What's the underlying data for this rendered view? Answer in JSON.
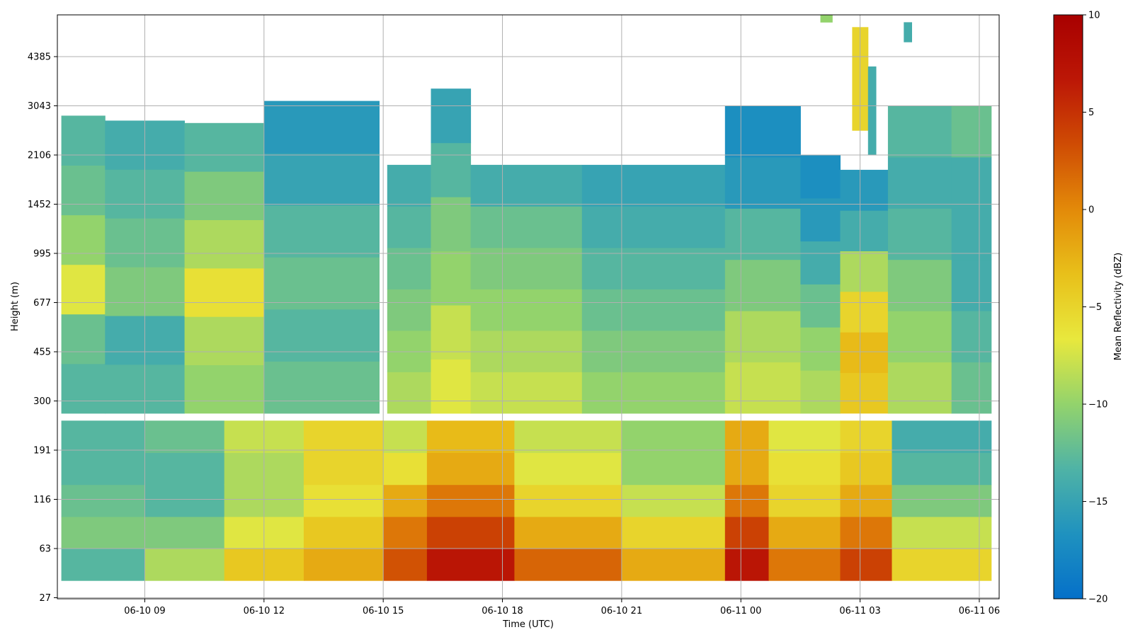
{
  "chart_data": {
    "type": "heatmap",
    "xlabel": "Time (UTC)",
    "ylabel": "Height (m)",
    "colorbar_label": "Mean Reflectivity (dBZ)",
    "colormap": [
      "#0570c9",
      "#1f92bf",
      "#4fb3a6",
      "#93d36c",
      "#e8e83d",
      "#e8c01a",
      "#e38a09",
      "#cf4c04",
      "#bc1706",
      "#a80000"
    ],
    "clim": [
      -20,
      10
    ],
    "colorbar_ticks": [
      {
        "value": 10,
        "label": "10"
      },
      {
        "value": 5,
        "label": "5"
      },
      {
        "value": 0,
        "label": "0"
      },
      {
        "value": -5,
        "label": "−5"
      },
      {
        "value": -10,
        "label": "−10"
      },
      {
        "value": -15,
        "label": "−15"
      },
      {
        "value": -20,
        "label": "−20"
      }
    ],
    "x_range_hours": [
      6.8,
      30.5
    ],
    "x_ticks": [
      {
        "hour": 9,
        "label": "06-10 09"
      },
      {
        "hour": 12,
        "label": "06-10 12"
      },
      {
        "hour": 15,
        "label": "06-10 15"
      },
      {
        "hour": 18,
        "label": "06-10 18"
      },
      {
        "hour": 21,
        "label": "06-10 21"
      },
      {
        "hour": 24,
        "label": "06-11 00"
      },
      {
        "hour": 27,
        "label": "06-11 03"
      },
      {
        "hour": 30,
        "label": "06-11 06"
      }
    ],
    "y_ticks": [
      "27",
      "63",
      "116",
      "191",
      "300",
      "455",
      "677",
      "995",
      "1452",
      "2106",
      "3043",
      "4385"
    ],
    "grid": true,
    "lower_gate": {
      "height_range_ticks": [
        0.35,
        3.6
      ],
      "columns": [
        {
          "start_hour": 6.9,
          "end_hour": 9.0,
          "profile": [
            -13,
            -11,
            -12,
            -13,
            -13
          ]
        },
        {
          "start_hour": 9.0,
          "end_hour": 11.0,
          "profile": [
            -9,
            -11,
            -13,
            -13,
            -12
          ]
        },
        {
          "start_hour": 11.0,
          "end_hour": 13.0,
          "profile": [
            -4,
            -7,
            -9,
            -9,
            -8
          ]
        },
        {
          "start_hour": 13.0,
          "end_hour": 15.0,
          "profile": [
            -2,
            -4,
            -6,
            -5,
            -5
          ]
        },
        {
          "start_hour": 15.0,
          "end_hour": 16.1,
          "profile": [
            3,
            1,
            -2,
            -6,
            -8
          ]
        },
        {
          "start_hour": 16.1,
          "end_hour": 18.3,
          "profile": [
            7,
            4,
            1,
            -2,
            -3
          ]
        },
        {
          "start_hour": 18.3,
          "end_hour": 21.0,
          "profile": [
            2,
            -2,
            -5,
            -7,
            -8
          ]
        },
        {
          "start_hour": 21.0,
          "end_hour": 23.6,
          "profile": [
            -2,
            -5,
            -8,
            -10,
            -10
          ]
        },
        {
          "start_hour": 23.6,
          "end_hour": 24.7,
          "profile": [
            7,
            4,
            1,
            -2,
            -2
          ]
        },
        {
          "start_hour": 24.7,
          "end_hour": 26.5,
          "profile": [
            1,
            -2,
            -5,
            -6,
            -7
          ]
        },
        {
          "start_hour": 26.5,
          "end_hour": 27.8,
          "profile": [
            4,
            1,
            -2,
            -4,
            -5
          ]
        },
        {
          "start_hour": 27.8,
          "end_hour": 30.3,
          "profile": [
            -5,
            -8,
            -11,
            -13,
            -14
          ]
        }
      ]
    },
    "upper_gate": {
      "height_range_ticks": [
        3.75,
        11.0
      ],
      "columns": [
        {
          "start_hour": 6.9,
          "end_hour": 8.0,
          "top_tick": 9.8,
          "profile": [
            -13,
            -12,
            -7,
            -10,
            -12,
            -13
          ]
        },
        {
          "start_hour": 8.0,
          "end_hour": 10.0,
          "top_tick": 9.7,
          "profile": [
            -13,
            -14,
            -11,
            -12,
            -13,
            -14
          ]
        },
        {
          "start_hour": 10.0,
          "end_hour": 12.0,
          "top_tick": 9.65,
          "profile": [
            -10,
            -9,
            -6,
            -9,
            -11,
            -13
          ]
        },
        {
          "start_hour": 12.0,
          "end_hour": 14.9,
          "top_tick": 10.1,
          "profile": [
            -12,
            -13,
            -12,
            -13,
            -15,
            -16
          ]
        },
        {
          "start_hour": 15.1,
          "end_hour": 16.2,
          "top_tick": 8.8,
          "profile": [
            -9,
            -10,
            -11,
            -12,
            -13,
            -14
          ]
        },
        {
          "start_hour": 16.2,
          "end_hour": 17.2,
          "top_tick": 10.35,
          "profile": [
            -7,
            -8,
            -10,
            -11,
            -13,
            -15
          ]
        },
        {
          "start_hour": 17.2,
          "end_hour": 20.0,
          "top_tick": 8.8,
          "profile": [
            -8,
            -9,
            -10,
            -11,
            -12,
            -14
          ]
        },
        {
          "start_hour": 20.0,
          "end_hour": 23.6,
          "top_tick": 8.8,
          "profile": [
            -10,
            -11,
            -12,
            -13,
            -14,
            -15
          ]
        },
        {
          "start_hour": 23.6,
          "end_hour": 25.5,
          "top_tick": 10.0,
          "profile": [
            -8,
            -9,
            -11,
            -13,
            -16,
            -17
          ]
        },
        {
          "start_hour": 25.5,
          "end_hour": 26.5,
          "top_tick": 9.0,
          "profile": [
            -9,
            -10,
            -12,
            -14,
            -16,
            -17
          ]
        },
        {
          "start_hour": 26.5,
          "end_hour": 27.7,
          "top_tick": 8.7,
          "profile": [
            -4,
            -3,
            -5,
            -9,
            -14,
            -16
          ]
        },
        {
          "start_hour": 27.7,
          "end_hour": 29.3,
          "top_tick": 10.0,
          "profile": [
            -9,
            -10,
            -11,
            -13,
            -14,
            -13
          ]
        },
        {
          "start_hour": 29.3,
          "end_hour": 30.3,
          "top_tick": 10.0,
          "profile": [
            -12,
            -13,
            -14,
            -14,
            -14,
            -12
          ]
        }
      ],
      "plumes": [
        {
          "start_hour": 26.8,
          "end_hour": 27.2,
          "bottom_tick": 9.5,
          "top_tick": 11.6,
          "value": -5
        },
        {
          "start_hour": 27.2,
          "end_hour": 27.4,
          "bottom_tick": 9.0,
          "top_tick": 10.8,
          "value": -14
        },
        {
          "start_hour": 28.1,
          "end_hour": 28.3,
          "bottom_tick": 11.3,
          "top_tick": 11.7,
          "value": -14
        },
        {
          "start_hour": 26.0,
          "end_hour": 26.3,
          "bottom_tick": 11.7,
          "top_tick": 11.9,
          "value": -10
        }
      ]
    }
  }
}
